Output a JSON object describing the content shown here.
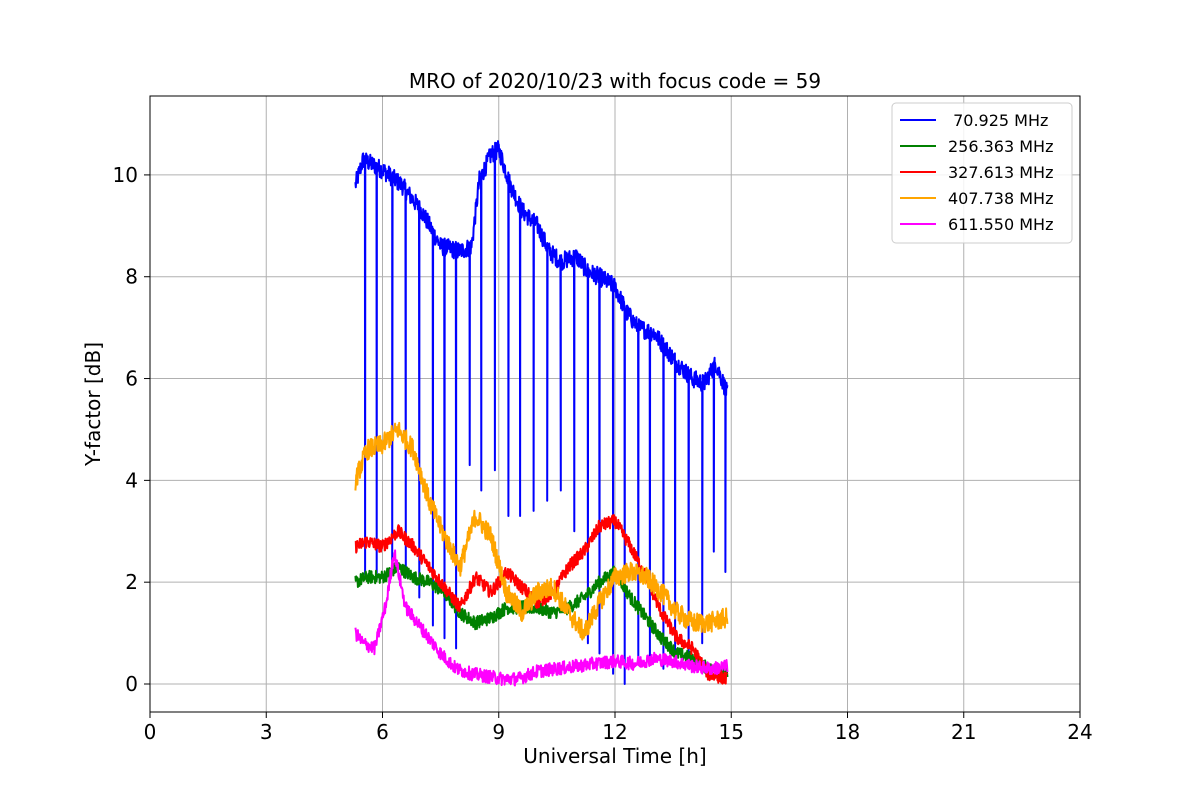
{
  "chart_data": {
    "type": "line",
    "title": "MRO of 2020/10/23 with focus code = 59",
    "xlabel": "Universal Time [h]",
    "ylabel": "Y-factor [dB]",
    "xlim": [
      0,
      24
    ],
    "ylim": [
      -0.55,
      11.55
    ],
    "xticks": [
      0,
      3,
      6,
      9,
      12,
      15,
      18,
      21,
      24
    ],
    "xtick_labels": [
      "0",
      "3",
      "6",
      "9",
      "12",
      "15",
      "18",
      "21",
      "24"
    ],
    "yticks": [
      0,
      2,
      4,
      6,
      8,
      10
    ],
    "ytick_labels": [
      "0",
      "2",
      "4",
      "6",
      "8",
      "10"
    ],
    "grid": true,
    "legend_position": "top-right",
    "series": [
      {
        "name": "70.925 MHz",
        "legend_label": " 70.925 MHz",
        "color": "#0000ff",
        "x": [
          5.3,
          5.5,
          6.0,
          6.5,
          7.0,
          7.5,
          8.0,
          8.3,
          8.5,
          8.8,
          9.0,
          9.3,
          9.6,
          10.0,
          10.3,
          10.6,
          11.0,
          11.3,
          11.6,
          12.0,
          12.3,
          12.6,
          13.0,
          13.3,
          13.6,
          14.0,
          14.3,
          14.6,
          14.9
        ],
        "y": [
          9.8,
          10.3,
          10.1,
          9.8,
          9.3,
          8.6,
          8.5,
          8.6,
          9.9,
          10.4,
          10.5,
          9.8,
          9.3,
          9.0,
          8.5,
          8.3,
          8.4,
          8.1,
          8.0,
          7.8,
          7.3,
          7.0,
          6.9,
          6.6,
          6.3,
          6.0,
          5.9,
          6.3,
          5.7
        ],
        "dips": [
          {
            "x": 5.55,
            "y": 2.15
          },
          {
            "x": 5.85,
            "y": 2.05
          },
          {
            "x": 6.25,
            "y": 2.3
          },
          {
            "x": 6.6,
            "y": 2.1
          },
          {
            "x": 6.95,
            "y": 1.7
          },
          {
            "x": 7.3,
            "y": 1.15
          },
          {
            "x": 7.6,
            "y": 0.9
          },
          {
            "x": 7.9,
            "y": 0.7
          },
          {
            "x": 8.25,
            "y": 4.3
          },
          {
            "x": 8.55,
            "y": 3.8
          },
          {
            "x": 8.9,
            "y": 4.2
          },
          {
            "x": 9.25,
            "y": 3.3
          },
          {
            "x": 9.55,
            "y": 3.3
          },
          {
            "x": 9.9,
            "y": 3.4
          },
          {
            "x": 10.25,
            "y": 3.6
          },
          {
            "x": 10.6,
            "y": 3.8
          },
          {
            "x": 10.95,
            "y": 3.0
          },
          {
            "x": 11.3,
            "y": 0.8
          },
          {
            "x": 11.6,
            "y": 0.6
          },
          {
            "x": 11.95,
            "y": 0.2
          },
          {
            "x": 12.25,
            "y": 0.0
          },
          {
            "x": 12.6,
            "y": 0.4
          },
          {
            "x": 12.9,
            "y": 0.5
          },
          {
            "x": 13.25,
            "y": 0.3
          },
          {
            "x": 13.55,
            "y": 0.4
          },
          {
            "x": 13.9,
            "y": 0.6
          },
          {
            "x": 14.25,
            "y": 0.8
          },
          {
            "x": 14.55,
            "y": 2.6
          },
          {
            "x": 14.85,
            "y": 2.2
          }
        ]
      },
      {
        "name": "256.363 MHz",
        "legend_label": "256.363 MHz",
        "color": "#008000",
        "x": [
          5.3,
          5.6,
          6.0,
          6.4,
          6.8,
          7.2,
          7.6,
          8.0,
          8.4,
          8.8,
          9.2,
          9.6,
          10.0,
          10.4,
          10.8,
          11.2,
          11.6,
          12.0,
          12.4,
          12.8,
          13.2,
          13.6,
          14.0,
          14.4,
          14.9
        ],
        "y": [
          2.0,
          2.1,
          2.1,
          2.3,
          2.1,
          2.0,
          1.8,
          1.4,
          1.2,
          1.3,
          1.5,
          1.5,
          1.5,
          1.4,
          1.5,
          1.7,
          2.0,
          2.2,
          1.7,
          1.3,
          0.9,
          0.6,
          0.5,
          0.3,
          0.2
        ]
      },
      {
        "name": "327.613 MHz",
        "legend_label": "327.613 MHz",
        "color": "#ff0000",
        "x": [
          5.3,
          5.6,
          6.0,
          6.4,
          6.8,
          7.2,
          7.6,
          8.0,
          8.4,
          8.8,
          9.2,
          9.6,
          10.0,
          10.4,
          10.8,
          11.2,
          11.6,
          12.0,
          12.4,
          12.8,
          13.2,
          13.6,
          14.0,
          14.4,
          14.9
        ],
        "y": [
          2.7,
          2.8,
          2.7,
          3.0,
          2.7,
          2.3,
          1.9,
          1.5,
          2.1,
          1.8,
          2.2,
          1.9,
          1.6,
          1.8,
          2.3,
          2.6,
          3.1,
          3.2,
          2.7,
          2.1,
          1.4,
          0.9,
          0.7,
          0.2,
          0.1
        ]
      },
      {
        "name": "407.738 MHz",
        "legend_label": "407.738 MHz",
        "color": "#ffa500",
        "x": [
          5.3,
          5.6,
          6.0,
          6.4,
          6.8,
          7.2,
          7.6,
          8.0,
          8.4,
          8.8,
          9.2,
          9.6,
          10.0,
          10.4,
          10.8,
          11.2,
          11.6,
          12.0,
          12.4,
          12.8,
          13.2,
          13.6,
          14.0,
          14.4,
          14.9
        ],
        "y": [
          4.0,
          4.6,
          4.7,
          5.0,
          4.6,
          3.6,
          2.9,
          2.3,
          3.3,
          2.9,
          1.8,
          1.4,
          1.8,
          1.9,
          1.4,
          1.0,
          1.6,
          2.1,
          2.2,
          2.1,
          1.8,
          1.4,
          1.2,
          1.2,
          1.3
        ]
      },
      {
        "name": "611.550 MHz",
        "legend_label": "611.550 MHz",
        "color": "#ff00ff",
        "x": [
          5.3,
          5.5,
          5.8,
          6.1,
          6.3,
          6.6,
          6.9,
          7.2,
          7.5,
          7.9,
          8.3,
          8.7,
          9.1,
          9.5,
          10.0,
          10.5,
          11.0,
          11.5,
          12.0,
          12.5,
          13.0,
          13.5,
          14.0,
          14.5,
          14.9
        ],
        "y": [
          1.0,
          0.8,
          0.7,
          1.6,
          2.6,
          1.5,
          1.2,
          0.9,
          0.6,
          0.3,
          0.2,
          0.15,
          0.1,
          0.1,
          0.25,
          0.3,
          0.35,
          0.4,
          0.45,
          0.4,
          0.5,
          0.45,
          0.35,
          0.3,
          0.35
        ]
      }
    ]
  }
}
